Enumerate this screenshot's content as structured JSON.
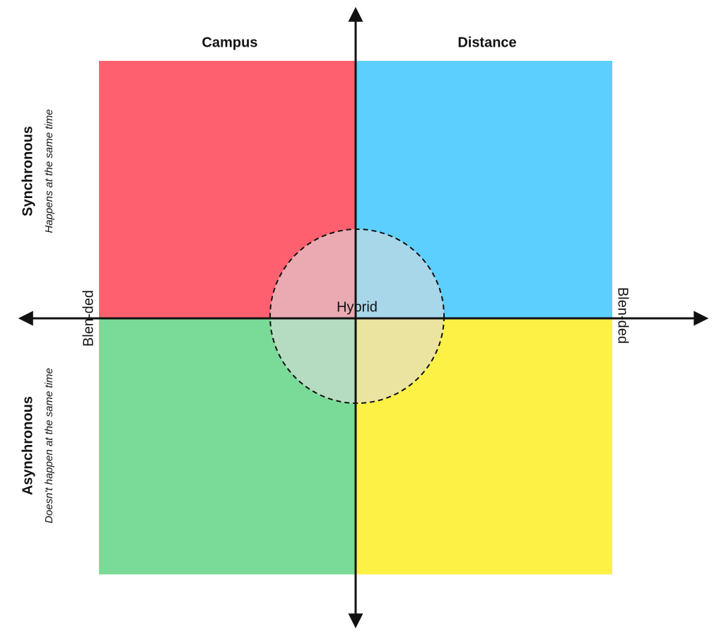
{
  "columns": {
    "left": "Campus",
    "right": "Distance"
  },
  "rows": {
    "top": {
      "title": "Synchronous",
      "subtitle": "Happens at the same time"
    },
    "bottom": {
      "title": "Asynchronous",
      "subtitle": "Doesn't happen at the same time"
    }
  },
  "center": {
    "label": "Hybrid"
  },
  "sides": {
    "left": "Blen-ded",
    "right": "Blen-ded"
  }
}
